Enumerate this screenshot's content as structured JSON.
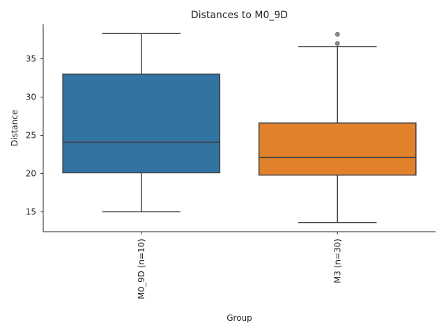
{
  "chart_data": {
    "type": "box",
    "title": "Distances to M0_9D",
    "xlabel": "Group",
    "ylabel": "Distance",
    "ylim": [
      12.4,
      39.5
    ],
    "yticks": [
      15,
      20,
      25,
      30,
      35
    ],
    "grid": false,
    "categories": [
      "M0_9D (n=10)",
      "M3 (n=30)"
    ],
    "boxes": [
      {
        "category": "M0_9D (n=10)",
        "color": "#3274a1",
        "whisker_low": 15.0,
        "q1": 20.1,
        "median": 24.1,
        "q3": 33.0,
        "whisker_high": 38.3,
        "outliers": []
      },
      {
        "category": "M3 (n=30)",
        "color": "#e1812c",
        "whisker_low": 13.6,
        "q1": 19.8,
        "median": 22.1,
        "q3": 26.6,
        "whisker_high": 36.6,
        "outliers": [
          37.0,
          38.2
        ]
      }
    ]
  }
}
